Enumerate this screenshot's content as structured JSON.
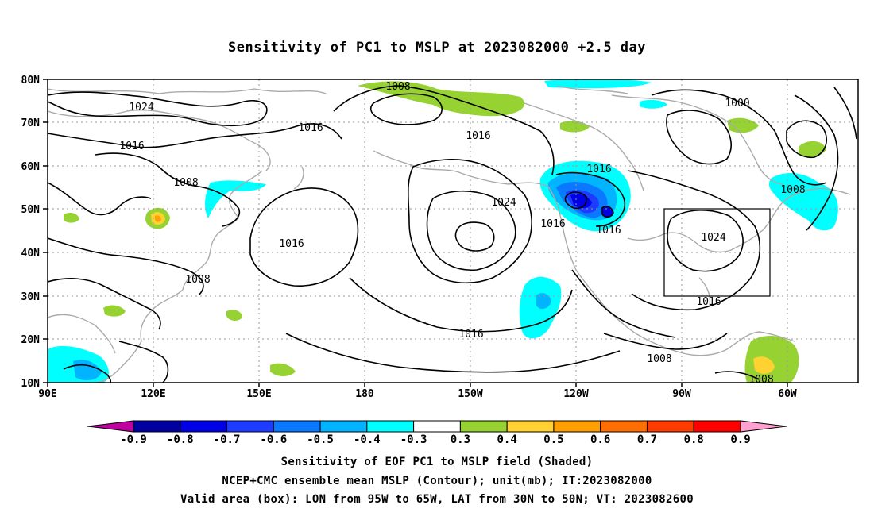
{
  "title": "Sensitivity of PC1 to MSLP at 2023082000 +2.5 day",
  "captions": [
    "Sensitivity of EOF PC1 to MSLP field (Shaded)",
    "NCEP+CMC ensemble mean MSLP (Contour); unit(mb); IT:2023082000",
    "Valid area (box): LON from 95W to 65W, LAT from 30N to 50N; VT: 2023082600"
  ],
  "map": {
    "lon_ticks": [
      "90E",
      "120E",
      "150E",
      "180",
      "150W",
      "120W",
      "90W",
      "60W"
    ],
    "lat_ticks": [
      "80N",
      "70N",
      "60N",
      "50N",
      "40N",
      "30N",
      "20N",
      "10N"
    ],
    "contour_labels": [
      "1008",
      "1024",
      "1016",
      "1016",
      "1008",
      "1016",
      "1008",
      "1016",
      "1024",
      "1016",
      "1016",
      "1016",
      "1016",
      "1000",
      "1008",
      "1024",
      "1016",
      "1008",
      "1008"
    ],
    "valid_box": {
      "lon": [
        "95W",
        "65W"
      ],
      "lat": [
        "30N",
        "50N"
      ]
    }
  },
  "colorbar": {
    "labels": [
      "-0.9",
      "-0.8",
      "-0.7",
      "-0.6",
      "-0.5",
      "-0.4",
      "-0.3",
      "0.3",
      "0.4",
      "0.5",
      "0.6",
      "0.7",
      "0.8",
      "0.9"
    ],
    "colors": [
      "#0000a0",
      "#0000e6",
      "#1e3cff",
      "#0a78ff",
      "#00b4ff",
      "#00ffff",
      "#ffffff",
      "#96d232",
      "#ffd232",
      "#ffa000",
      "#ff6e00",
      "#ff3c00",
      "#ff0000"
    ],
    "low_extend_color": "#c000a0",
    "high_extend_color": "#ffa0d0"
  }
}
